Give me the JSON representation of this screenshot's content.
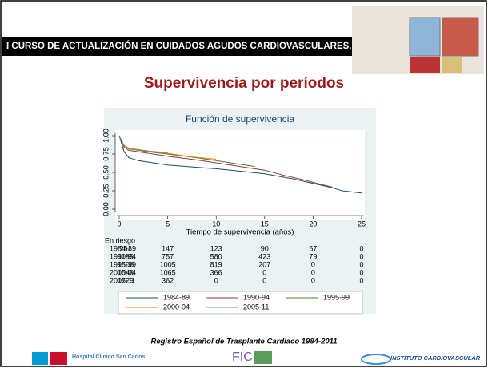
{
  "header": {
    "banner": "I CURSO DE ACTUALIZACIÓN EN CUIDADOS AGUDOS CARDIOVASCULARES."
  },
  "slide_title": "Supervivencia por períodos",
  "chart_data": {
    "type": "line",
    "title": "Función de supervivencia",
    "x_label": "Tiempo de supervivencia (años)",
    "xlim": [
      0,
      25
    ],
    "ylim": [
      0,
      1
    ],
    "xticks": [
      0,
      5,
      10,
      15,
      20,
      25
    ],
    "yticks": [
      {
        "value": 0,
        "label": "0.00"
      },
      {
        "value": 0.25,
        "label": "0.25"
      },
      {
        "value": 0.5,
        "label": "0.50"
      },
      {
        "value": 0.75,
        "label": "0.75"
      },
      {
        "value": 1,
        "label": "1.00"
      }
    ],
    "series": [
      {
        "name": "1984-89",
        "color": "#1a476f",
        "x": [
          0,
          0.5,
          1,
          2,
          5,
          8,
          10,
          13,
          15,
          18,
          20,
          22,
          23,
          25
        ],
        "values": [
          1,
          0.78,
          0.7,
          0.66,
          0.6,
          0.57,
          0.55,
          0.51,
          0.48,
          0.41,
          0.35,
          0.29,
          0.25,
          0.22
        ]
      },
      {
        "name": "1990-94",
        "color": "#90353b",
        "x": [
          0,
          0.5,
          1,
          3,
          5,
          8,
          10,
          13,
          15,
          17,
          19,
          21,
          22
        ],
        "values": [
          1,
          0.84,
          0.8,
          0.76,
          0.72,
          0.67,
          0.63,
          0.57,
          0.53,
          0.46,
          0.4,
          0.33,
          0.3
        ]
      },
      {
        "name": "1995-99",
        "color": "#55752f",
        "x": [
          0,
          0.5,
          1,
          3,
          5,
          8,
          10,
          12,
          14
        ],
        "values": [
          1,
          0.86,
          0.82,
          0.78,
          0.75,
          0.7,
          0.66,
          0.62,
          0.58
        ]
      },
      {
        "name": "2000-04",
        "color": "#e37e00",
        "x": [
          0,
          0.5,
          1,
          3,
          5,
          7,
          9,
          10
        ],
        "values": [
          1,
          0.87,
          0.83,
          0.79,
          0.76,
          0.72,
          0.69,
          0.68
        ]
      },
      {
        "name": "2005-11",
        "color": "#6e8e84",
        "x": [
          0,
          0.5,
          1,
          3,
          5
        ],
        "values": [
          1,
          0.86,
          0.82,
          0.79,
          0.77
        ]
      }
    ],
    "risk_table": {
      "title": "En riesgo",
      "rows": [
        {
          "name": "1984-89",
          "values": [
            281,
            147,
            123,
            90,
            67,
            0
          ]
        },
        {
          "name": "1990-94",
          "values": [
            1185,
            757,
            580,
            423,
            79,
            0
          ]
        },
        {
          "name": "1995-99",
          "values": [
            1506,
            1005,
            819,
            207,
            0,
            0
          ]
        },
        {
          "name": "2000-04",
          "values": [
            1546,
            1065,
            366,
            0,
            0,
            0
          ]
        },
        {
          "name": "2005-11",
          "values": [
            1729,
            362,
            0,
            0,
            0,
            0
          ]
        }
      ]
    }
  },
  "footer": {
    "source": "Registro Español de Trasplante Cardiaco 1984-2011",
    "logos": [
      "Hospital Clínico San Carlos",
      "FIC",
      "INSTITUTO CARDIOVASCULAR"
    ]
  }
}
